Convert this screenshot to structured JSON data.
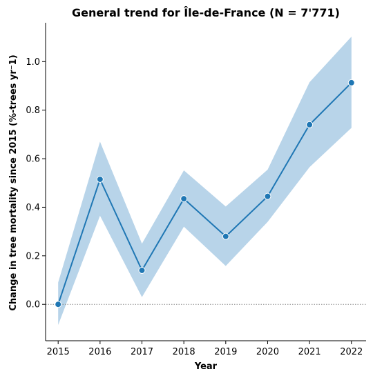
{
  "chart_data": {
    "type": "line",
    "title": "General trend for Île-de-France  (N = 7'771)",
    "xlabel": "Year",
    "ylabel": "Change in tree mortality since 2015 (%-trees yr⁻1)",
    "x": [
      2015,
      2016,
      2017,
      2018,
      2019,
      2020,
      2021,
      2022
    ],
    "series": [
      {
        "values": [
          0.0,
          0.515,
          0.14,
          0.435,
          0.28,
          0.445,
          0.74,
          0.913
        ],
        "ci_lower": [
          -0.085,
          0.365,
          0.03,
          0.32,
          0.158,
          0.34,
          0.565,
          0.727
        ],
        "ci_upper": [
          0.09,
          0.67,
          0.25,
          0.552,
          0.403,
          0.555,
          0.915,
          1.103
        ],
        "color": "#1f77b4",
        "band_color": "#b8d4e9"
      }
    ],
    "xlim": [
      2014.7,
      2022.35
    ],
    "ylim": [
      -0.15,
      1.16
    ],
    "yticks": [
      0.0,
      0.2,
      0.4,
      0.6,
      0.8,
      1.0
    ],
    "ytick_labels": [
      "0.0",
      "0.2",
      "0.4",
      "0.6",
      "0.8",
      "1.0"
    ],
    "xtick_labels": [
      "2015",
      "2016",
      "2017",
      "2018",
      "2019",
      "2020",
      "2021",
      "2022"
    ],
    "reference_line": {
      "y": 0.0,
      "style": "dotted",
      "color": "#888888"
    },
    "grid": false,
    "legend": "none"
  }
}
